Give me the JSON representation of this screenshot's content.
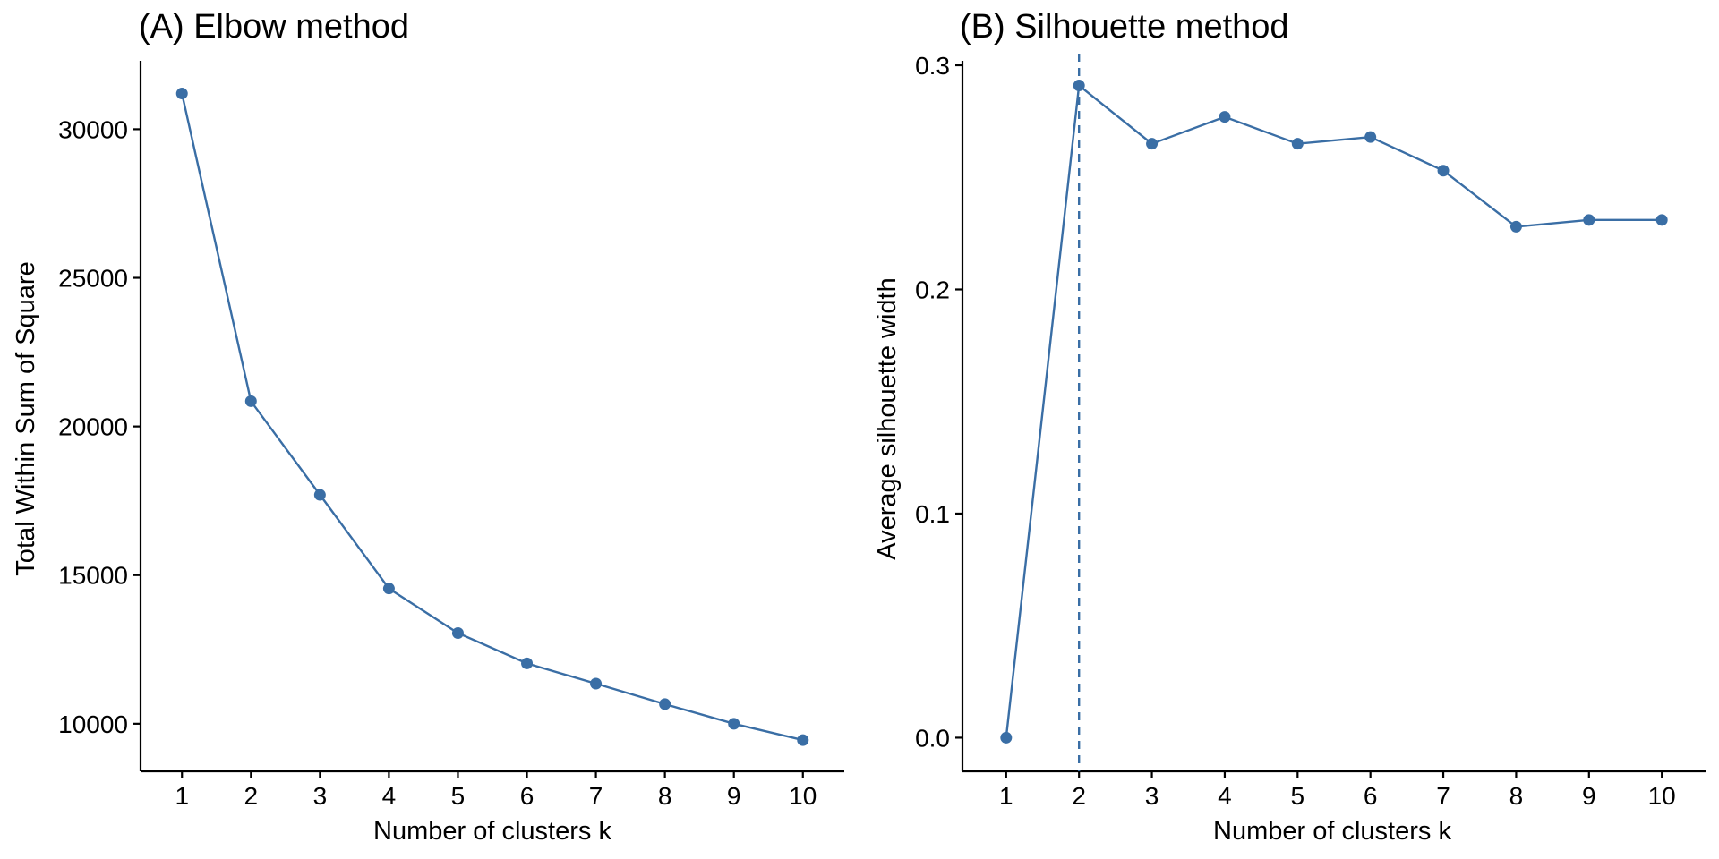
{
  "chart_data": [
    {
      "type": "line",
      "title": "(A) Elbow method",
      "xlabel": "Number of clusters k",
      "ylabel": "Total Within Sum of Square",
      "x": [
        1,
        2,
        3,
        4,
        5,
        6,
        7,
        8,
        9,
        10
      ],
      "values": [
        31200,
        20850,
        17700,
        14550,
        13050,
        12030,
        11350,
        10660,
        10000,
        9450
      ],
      "xlim": [
        0.4,
        10.6
      ],
      "ylim": [
        8400,
        32300
      ],
      "yticks": [
        10000,
        15000,
        20000,
        25000,
        30000
      ],
      "grid": false,
      "color": "#3a6ea5"
    },
    {
      "type": "line",
      "title": "(B) Silhouette method",
      "xlabel": "Number of clusters k",
      "ylabel": "Average silhouette width",
      "x": [
        1,
        2,
        3,
        4,
        5,
        6,
        7,
        8,
        9,
        10
      ],
      "values": [
        0.0,
        0.291,
        0.265,
        0.277,
        0.265,
        0.268,
        0.253,
        0.228,
        0.231,
        0.231
      ],
      "xlim": [
        0.4,
        10.6
      ],
      "ylim": [
        -0.015,
        0.302
      ],
      "yticks": [
        0.0,
        0.1,
        0.2,
        0.3
      ],
      "yticklabels": [
        "0.0",
        "0.1",
        "0.2",
        "0.3"
      ],
      "vline": 2,
      "grid": false,
      "color": "#3a6ea5"
    }
  ]
}
